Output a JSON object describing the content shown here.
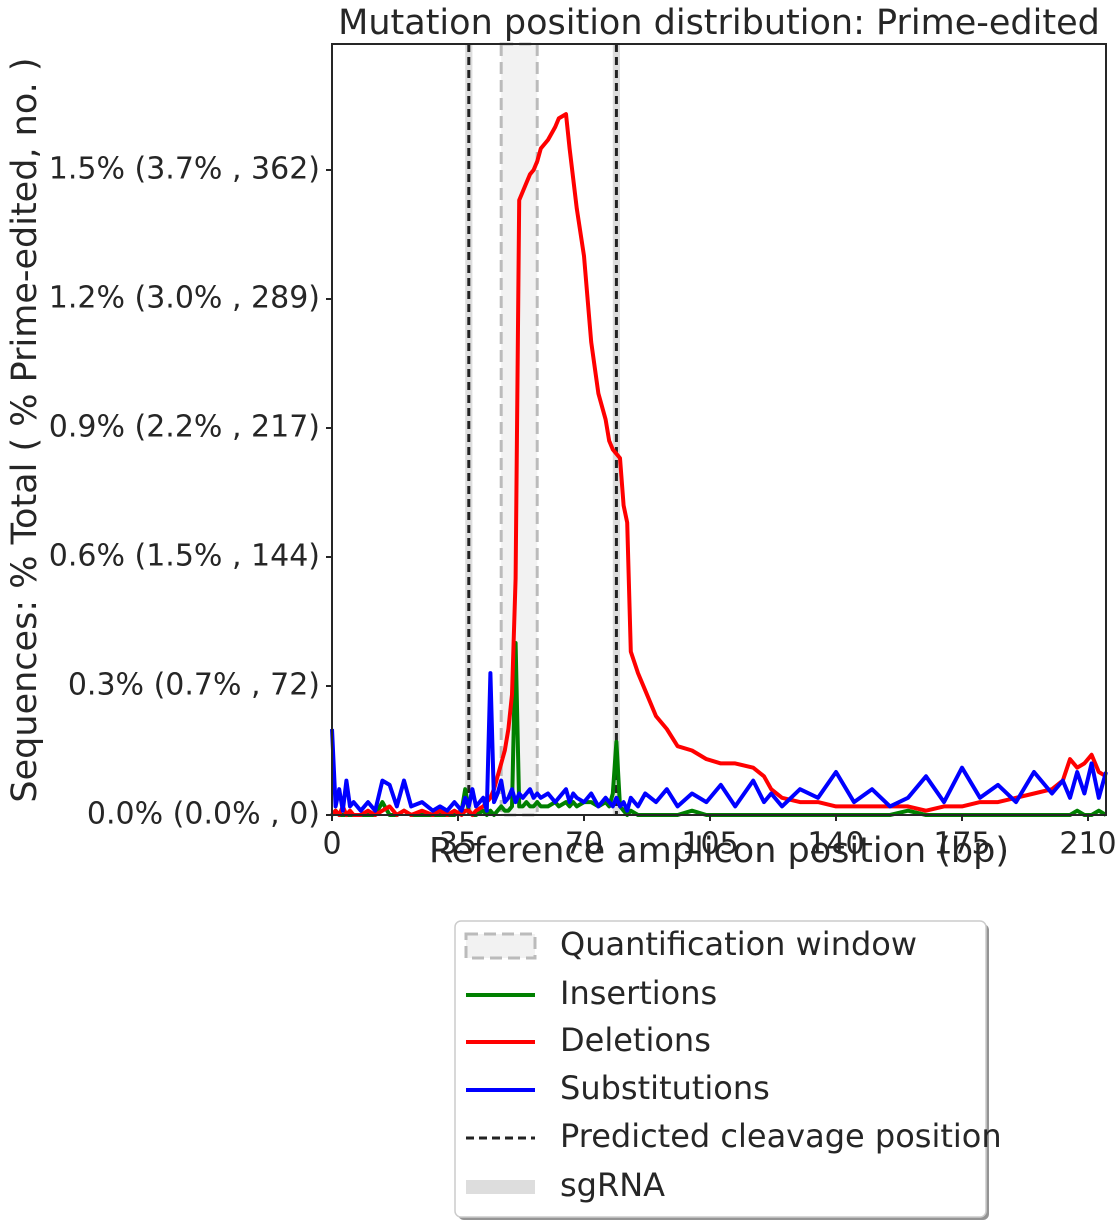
{
  "chart_data": {
    "type": "line",
    "title": "Mutation position distribution: Prime-edited",
    "x_label": "Reference amplicon position (bp)",
    "y_label": "Sequences: % Total ( % Prime-edited, no. )",
    "x": [
      0,
      1,
      2,
      3,
      4,
      5,
      6,
      8,
      10,
      12,
      14,
      16,
      18,
      20,
      22,
      25,
      28,
      30,
      32,
      34,
      36,
      37,
      38,
      39,
      40,
      42,
      43,
      44,
      45,
      46,
      47,
      48,
      49,
      50,
      51,
      52,
      53,
      54,
      55,
      56,
      57,
      58,
      60,
      62,
      63,
      65,
      66,
      67,
      68,
      70,
      72,
      74,
      76,
      77,
      78,
      79,
      80,
      81,
      82,
      83,
      85,
      87,
      90,
      93,
      96,
      100,
      104,
      108,
      112,
      117,
      120,
      122,
      125,
      130,
      135,
      140,
      145,
      150,
      155,
      160,
      165,
      170,
      175,
      180,
      185,
      190,
      195,
      200,
      203,
      205,
      207,
      209,
      211,
      213,
      215
    ],
    "series": [
      {
        "name": "Insertions",
        "color": "#008000",
        "values": [
          0,
          0.01,
          0,
          0,
          0,
          0,
          0,
          0,
          0,
          0,
          0.03,
          0,
          0,
          0.01,
          0,
          0,
          0,
          0,
          0,
          0,
          0.01,
          0.06,
          0.01,
          0,
          0,
          0.01,
          0,
          0.01,
          0,
          0.01,
          0.02,
          0.01,
          0.01,
          0.02,
          0.4,
          0.02,
          0.02,
          0.03,
          0.02,
          0.02,
          0.03,
          0.02,
          0.02,
          0.03,
          0.02,
          0.03,
          0.02,
          0.03,
          0.02,
          0.03,
          0.03,
          0.02,
          0.03,
          0.02,
          0.05,
          0.17,
          0.02,
          0.01,
          0,
          0.01,
          0,
          0,
          0,
          0,
          0,
          0.01,
          0,
          0,
          0,
          0,
          0,
          0,
          0,
          0,
          0,
          0,
          0,
          0,
          0,
          0.01,
          0,
          0,
          0,
          0,
          0,
          0,
          0,
          0,
          0,
          0,
          0.01,
          0,
          0,
          0.01,
          0
        ]
      },
      {
        "name": "Deletions",
        "color": "#ff0000",
        "values": [
          0,
          0.01,
          0,
          0.02,
          0,
          0.01,
          0,
          0,
          0.01,
          0,
          0.01,
          0.02,
          0,
          0.01,
          0,
          0.01,
          0,
          0.01,
          0,
          0.01,
          0,
          0.01,
          0.01,
          0,
          0.01,
          0.02,
          0.03,
          0.04,
          0.06,
          0.09,
          0.12,
          0.15,
          0.2,
          0.28,
          0.55,
          1.43,
          1.45,
          1.47,
          1.49,
          1.5,
          1.52,
          1.55,
          1.57,
          1.6,
          1.62,
          1.63,
          1.55,
          1.48,
          1.41,
          1.3,
          1.1,
          0.98,
          0.92,
          0.87,
          0.85,
          0.84,
          0.83,
          0.72,
          0.68,
          0.38,
          0.33,
          0.29,
          0.23,
          0.2,
          0.16,
          0.15,
          0.13,
          0.12,
          0.12,
          0.11,
          0.09,
          0.06,
          0.04,
          0.03,
          0.03,
          0.02,
          0.02,
          0.02,
          0.02,
          0.02,
          0.01,
          0.02,
          0.02,
          0.03,
          0.03,
          0.04,
          0.05,
          0.06,
          0.08,
          0.13,
          0.11,
          0.12,
          0.14,
          0.1,
          0.09
        ]
      },
      {
        "name": "Substitutions",
        "color": "#0000ff",
        "values": [
          0.2,
          0.02,
          0.06,
          0.01,
          0.08,
          0.02,
          0.03,
          0.01,
          0.03,
          0.01,
          0.08,
          0.07,
          0.02,
          0.08,
          0.02,
          0.03,
          0.01,
          0.02,
          0.01,
          0.03,
          0.01,
          0.04,
          0.02,
          0.06,
          0.02,
          0.04,
          0.01,
          0.33,
          0.03,
          0.05,
          0.08,
          0.03,
          0.04,
          0.06,
          0.03,
          0.05,
          0.04,
          0.05,
          0.06,
          0.04,
          0.05,
          0.04,
          0.05,
          0.03,
          0.04,
          0.06,
          0.03,
          0.05,
          0.04,
          0.03,
          0.05,
          0.02,
          0.04,
          0.03,
          0.02,
          0.04,
          0.02,
          0.03,
          0.01,
          0.04,
          0.02,
          0.05,
          0.03,
          0.06,
          0.02,
          0.05,
          0.03,
          0.07,
          0.02,
          0.08,
          0.03,
          0.05,
          0.02,
          0.06,
          0.04,
          0.1,
          0.03,
          0.06,
          0.02,
          0.04,
          0.09,
          0.03,
          0.11,
          0.04,
          0.07,
          0.03,
          0.1,
          0.05,
          0.08,
          0.04,
          0.1,
          0.05,
          0.12,
          0.04,
          0.1
        ]
      }
    ],
    "quantification_window": {
      "label": "Quantification window",
      "start": 47,
      "end": 57,
      "color": "#bbbbbb"
    },
    "cleavage": {
      "label": "Predicted cleavage position",
      "positions": [
        38,
        79
      ],
      "color": "#222222"
    },
    "sgrna": {
      "label": "sgRNA",
      "ranges": [
        [
          37,
          39
        ],
        [
          78,
          80
        ]
      ],
      "color": "#dddddd"
    },
    "xlim": [
      0,
      215
    ],
    "xticks": [
      0,
      35,
      70,
      105,
      140,
      175,
      210
    ],
    "ylim": [
      0,
      1.793
    ],
    "yticks": [
      {
        "value": 0,
        "label": "0.0% (0.0% , 0)"
      },
      {
        "value": 0.3,
        "label": "0.3% (0.7% , 72)"
      },
      {
        "value": 0.6,
        "label": "0.6% (1.5% , 144)"
      },
      {
        "value": 0.9,
        "label": "0.9% (2.2% , 217)"
      },
      {
        "value": 1.2,
        "label": "1.2% (3.0% , 289)"
      },
      {
        "value": 1.5,
        "label": "1.5% (3.7% , 362)"
      }
    ]
  }
}
